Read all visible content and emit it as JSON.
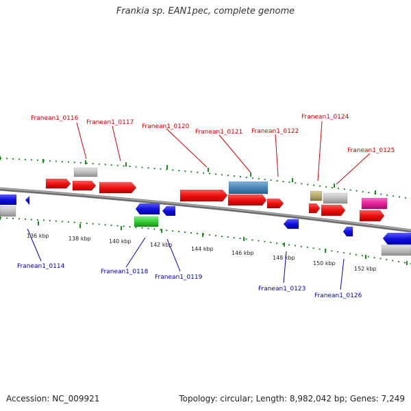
{
  "title": "Frankia sp. EAN1pec, complete genome",
  "footer": {
    "accession": "Accession: NC_009921",
    "summary": "Topology: circular; Length: 8,982,042 bp; Genes: 7,249"
  },
  "colors": {
    "forward_label": "#cc0000",
    "reverse_label": "#0000aa",
    "tick_dots": "#1a8a1a",
    "backbone": "#808080"
  },
  "ticks": [
    "136 kbp",
    "138 kbp",
    "140 kbp",
    "142 kbp",
    "144 kbp",
    "146 kbp",
    "148 kbp",
    "150 kbp",
    "152 kbp"
  ],
  "genes_top": [
    "Franean1_0116",
    "Franean1_0117",
    "Franean1_0120",
    "Franean1_0121",
    "Franean1_0122",
    "Franean1_0124",
    "Franean1_0125"
  ],
  "genes_bottom": [
    "Franean1_0114",
    "Franean1_0118",
    "Franean1_0119",
    "Franean1_0123",
    "Franean1_0126"
  ],
  "feature_colors": {
    "forward": "#ee1111",
    "reverse": "#1111dd",
    "rna": "#4a86b8",
    "pseudo": "#b8b8b8",
    "other_green": "#33cc33",
    "other_magenta": "#e8229a",
    "other_olive": "#b5a86a"
  }
}
